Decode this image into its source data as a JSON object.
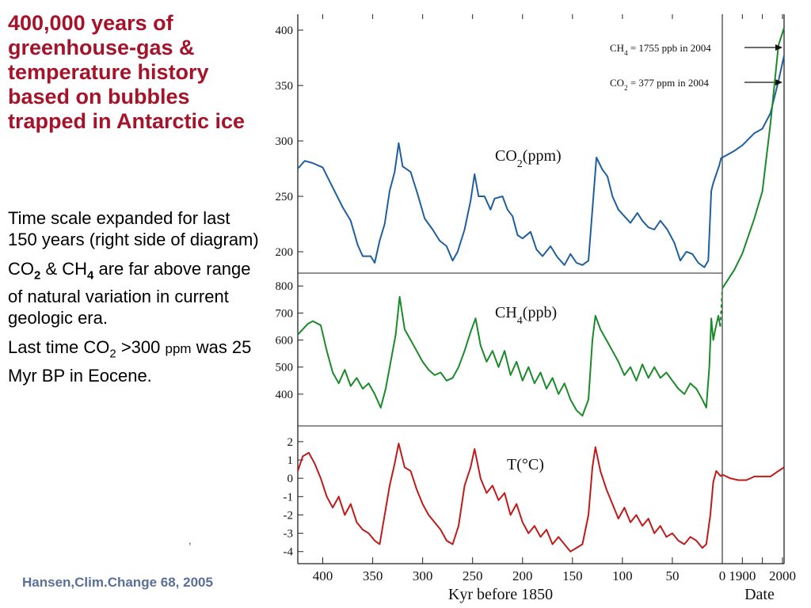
{
  "slide": {
    "title": "400,000 years of greenhouse-gas & temperature history based on bubbles trapped in Antarctic ice",
    "bullet1": "Time scale expanded for last 150 years (right side of diagram)",
    "bullet2": {
      "co": "CO",
      "co_sub": "2",
      "amp": " & CH",
      "ch_sub": "4",
      "rest": " are far above range of natural variation in current geologic era."
    },
    "bullet3": {
      "pre": "Last time CO",
      "sub": "2",
      "mid": " >300 ",
      "ppm": "ppm",
      "post": " was 25 Myr BP in Eocene."
    },
    "stray_mark": ",",
    "citation": "Hansen,Clim.Change 68, 2005"
  },
  "chart_data": {
    "type": "line",
    "x_main": {
      "label": "Kyr before 1850",
      "ticks": [
        400,
        350,
        300,
        250,
        200,
        150,
        100,
        50,
        0
      ],
      "range": [
        425,
        0
      ]
    },
    "x_recent": {
      "label": "Date",
      "ticks": [
        1900,
        1950,
        2000
      ],
      "tick_labels": [
        "1900",
        "",
        "2000"
      ],
      "range": [
        1850,
        2004
      ]
    },
    "panels": [
      {
        "name": "CO2(ppm)",
        "label": "CO",
        "label_sub": "2",
        "label_unit": "(ppm)",
        "color": "#1f5fa0",
        "yticks": [
          200,
          250,
          300,
          350,
          400
        ],
        "ylim": [
          185,
          410
        ],
        "series": [
          [
            425,
            275
          ],
          [
            418,
            282
          ],
          [
            410,
            280
          ],
          [
            400,
            276
          ],
          [
            390,
            258
          ],
          [
            380,
            240
          ],
          [
            372,
            228
          ],
          [
            365,
            206
          ],
          [
            360,
            196
          ],
          [
            352,
            196
          ],
          [
            348,
            190
          ],
          [
            343,
            210
          ],
          [
            338,
            225
          ],
          [
            333,
            255
          ],
          [
            328,
            272
          ],
          [
            324,
            298
          ],
          [
            320,
            277
          ],
          [
            312,
            272
          ],
          [
            305,
            252
          ],
          [
            298,
            230
          ],
          [
            290,
            220
          ],
          [
            283,
            210
          ],
          [
            276,
            205
          ],
          [
            270,
            192
          ],
          [
            265,
            200
          ],
          [
            258,
            220
          ],
          [
            252,
            246
          ],
          [
            248,
            270
          ],
          [
            244,
            250
          ],
          [
            238,
            250
          ],
          [
            232,
            238
          ],
          [
            228,
            248
          ],
          [
            220,
            250
          ],
          [
            215,
            238
          ],
          [
            210,
            232
          ],
          [
            205,
            215
          ],
          [
            200,
            212
          ],
          [
            192,
            218
          ],
          [
            186,
            202
          ],
          [
            180,
            196
          ],
          [
            172,
            205
          ],
          [
            165,
            195
          ],
          [
            158,
            188
          ],
          [
            152,
            198
          ],
          [
            146,
            190
          ],
          [
            140,
            188
          ],
          [
            134,
            192
          ],
          [
            128,
            262
          ],
          [
            126,
            285
          ],
          [
            120,
            274
          ],
          [
            115,
            268
          ],
          [
            110,
            250
          ],
          [
            104,
            238
          ],
          [
            98,
            232
          ],
          [
            92,
            226
          ],
          [
            85,
            235
          ],
          [
            80,
            228
          ],
          [
            74,
            222
          ],
          [
            68,
            220
          ],
          [
            62,
            228
          ],
          [
            55,
            220
          ],
          [
            48,
            208
          ],
          [
            42,
            192
          ],
          [
            36,
            200
          ],
          [
            30,
            198
          ],
          [
            24,
            190
          ],
          [
            18,
            186
          ],
          [
            14,
            192
          ],
          [
            11,
            255
          ],
          [
            9,
            262
          ],
          [
            6,
            270
          ],
          [
            3,
            278
          ],
          [
            1,
            285
          ]
        ],
        "recent": [
          [
            1850,
            285
          ],
          [
            1880,
            291
          ],
          [
            1900,
            296
          ],
          [
            1930,
            307
          ],
          [
            1950,
            311
          ],
          [
            1970,
            325
          ],
          [
            1990,
            354
          ],
          [
            2004,
            377
          ]
        ],
        "annotation": {
          "text": "CO",
          "sub": "2",
          "rest": " = 377 ppm in 2004",
          "value": 377
        }
      },
      {
        "name": "CH4(ppb)",
        "label": "CH",
        "label_sub": "4",
        "label_unit": "(ppb)",
        "color": "#1a8a2a",
        "yticks": [
          400,
          500,
          600,
          700,
          800
        ],
        "ylim": [
          300,
          830
        ],
        "series": [
          [
            425,
            620
          ],
          [
            420,
            640
          ],
          [
            415,
            660
          ],
          [
            410,
            670
          ],
          [
            402,
            655
          ],
          [
            396,
            560
          ],
          [
            390,
            480
          ],
          [
            384,
            440
          ],
          [
            378,
            490
          ],
          [
            372,
            430
          ],
          [
            366,
            460
          ],
          [
            360,
            420
          ],
          [
            354,
            440
          ],
          [
            348,
            400
          ],
          [
            342,
            350
          ],
          [
            337,
            420
          ],
          [
            332,
            520
          ],
          [
            327,
            620
          ],
          [
            323,
            760
          ],
          [
            318,
            640
          ],
          [
            312,
            600
          ],
          [
            306,
            560
          ],
          [
            300,
            520
          ],
          [
            294,
            490
          ],
          [
            288,
            470
          ],
          [
            282,
            480
          ],
          [
            276,
            450
          ],
          [
            270,
            460
          ],
          [
            264,
            500
          ],
          [
            258,
            560
          ],
          [
            252,
            630
          ],
          [
            247,
            680
          ],
          [
            242,
            580
          ],
          [
            236,
            520
          ],
          [
            230,
            560
          ],
          [
            224,
            500
          ],
          [
            218,
            560
          ],
          [
            212,
            470
          ],
          [
            206,
            520
          ],
          [
            200,
            450
          ],
          [
            194,
            500
          ],
          [
            188,
            440
          ],
          [
            182,
            480
          ],
          [
            176,
            420
          ],
          [
            170,
            460
          ],
          [
            164,
            400
          ],
          [
            158,
            440
          ],
          [
            152,
            380
          ],
          [
            146,
            340
          ],
          [
            140,
            320
          ],
          [
            134,
            380
          ],
          [
            130,
            600
          ],
          [
            127,
            690
          ],
          [
            122,
            640
          ],
          [
            116,
            600
          ],
          [
            110,
            560
          ],
          [
            104,
            520
          ],
          [
            98,
            470
          ],
          [
            92,
            500
          ],
          [
            86,
            450
          ],
          [
            80,
            510
          ],
          [
            74,
            460
          ],
          [
            68,
            500
          ],
          [
            62,
            460
          ],
          [
            56,
            480
          ],
          [
            50,
            450
          ],
          [
            44,
            420
          ],
          [
            38,
            400
          ],
          [
            32,
            440
          ],
          [
            26,
            420
          ],
          [
            20,
            380
          ],
          [
            16,
            350
          ],
          [
            13,
            500
          ],
          [
            11,
            680
          ],
          [
            9,
            600
          ],
          [
            7,
            640
          ],
          [
            4,
            690
          ],
          [
            2,
            650
          ]
        ],
        "recent": [
          [
            1850,
            791
          ],
          [
            1880,
            860
          ],
          [
            1900,
            920
          ],
          [
            1930,
            1050
          ],
          [
            1950,
            1150
          ],
          [
            1970,
            1400
          ],
          [
            1990,
            1690
          ],
          [
            2004,
            1755
          ]
        ],
        "annotation": {
          "text": "CH",
          "sub": "4",
          "rest": " = 1755 ppb in 2004",
          "value": 1755
        }
      },
      {
        "name": "T(°C)",
        "label": "T(°C)",
        "label_sub": "",
        "label_unit": "",
        "color": "#c01a1a",
        "yticks": [
          -4,
          -3,
          -2,
          -1,
          0,
          1,
          2
        ],
        "ylim": [
          -4.4,
          2.6
        ],
        "series": [
          [
            425,
            0.4
          ],
          [
            420,
            1.2
          ],
          [
            414,
            1.4
          ],
          [
            408,
            0.8
          ],
          [
            402,
            0.0
          ],
          [
            396,
            -1.0
          ],
          [
            390,
            -1.6
          ],
          [
            384,
            -1.0
          ],
          [
            378,
            -2.0
          ],
          [
            372,
            -1.4
          ],
          [
            366,
            -2.4
          ],
          [
            360,
            -2.8
          ],
          [
            354,
            -3.0
          ],
          [
            348,
            -3.4
          ],
          [
            343,
            -3.6
          ],
          [
            338,
            -2.0
          ],
          [
            333,
            -0.4
          ],
          [
            328,
            0.8
          ],
          [
            324,
            1.9
          ],
          [
            318,
            0.6
          ],
          [
            312,
            0.4
          ],
          [
            306,
            -0.6
          ],
          [
            300,
            -1.4
          ],
          [
            294,
            -2.0
          ],
          [
            288,
            -2.4
          ],
          [
            282,
            -2.8
          ],
          [
            276,
            -3.4
          ],
          [
            270,
            -3.6
          ],
          [
            264,
            -2.6
          ],
          [
            258,
            -0.4
          ],
          [
            252,
            0.6
          ],
          [
            248,
            1.6
          ],
          [
            242,
            0.0
          ],
          [
            236,
            -0.8
          ],
          [
            230,
            -0.4
          ],
          [
            224,
            -1.2
          ],
          [
            218,
            -0.8
          ],
          [
            212,
            -2.0
          ],
          [
            206,
            -1.4
          ],
          [
            200,
            -2.4
          ],
          [
            194,
            -3.0
          ],
          [
            188,
            -2.6
          ],
          [
            182,
            -3.2
          ],
          [
            176,
            -2.8
          ],
          [
            170,
            -3.6
          ],
          [
            164,
            -3.2
          ],
          [
            158,
            -3.6
          ],
          [
            152,
            -4.0
          ],
          [
            146,
            -3.8
          ],
          [
            140,
            -3.6
          ],
          [
            134,
            -2.0
          ],
          [
            130,
            0.6
          ],
          [
            127,
            1.7
          ],
          [
            122,
            0.4
          ],
          [
            116,
            -0.6
          ],
          [
            110,
            -1.4
          ],
          [
            104,
            -2.2
          ],
          [
            98,
            -1.6
          ],
          [
            92,
            -2.4
          ],
          [
            86,
            -2.0
          ],
          [
            80,
            -2.6
          ],
          [
            74,
            -2.2
          ],
          [
            68,
            -3.0
          ],
          [
            62,
            -2.6
          ],
          [
            56,
            -3.2
          ],
          [
            50,
            -3.0
          ],
          [
            44,
            -3.4
          ],
          [
            38,
            -3.6
          ],
          [
            32,
            -3.2
          ],
          [
            26,
            -3.4
          ],
          [
            20,
            -3.8
          ],
          [
            16,
            -3.6
          ],
          [
            12,
            -2.0
          ],
          [
            9,
            -0.2
          ],
          [
            6,
            0.4
          ],
          [
            3,
            0.2
          ],
          [
            1,
            0.1
          ]
        ],
        "recent": [
          [
            1850,
            0.2
          ],
          [
            1870,
            0.0
          ],
          [
            1890,
            -0.1
          ],
          [
            1910,
            -0.1
          ],
          [
            1930,
            0.1
          ],
          [
            1950,
            0.1
          ],
          [
            1970,
            0.1
          ],
          [
            1990,
            0.4
          ],
          [
            2004,
            0.6
          ]
        ]
      }
    ]
  }
}
